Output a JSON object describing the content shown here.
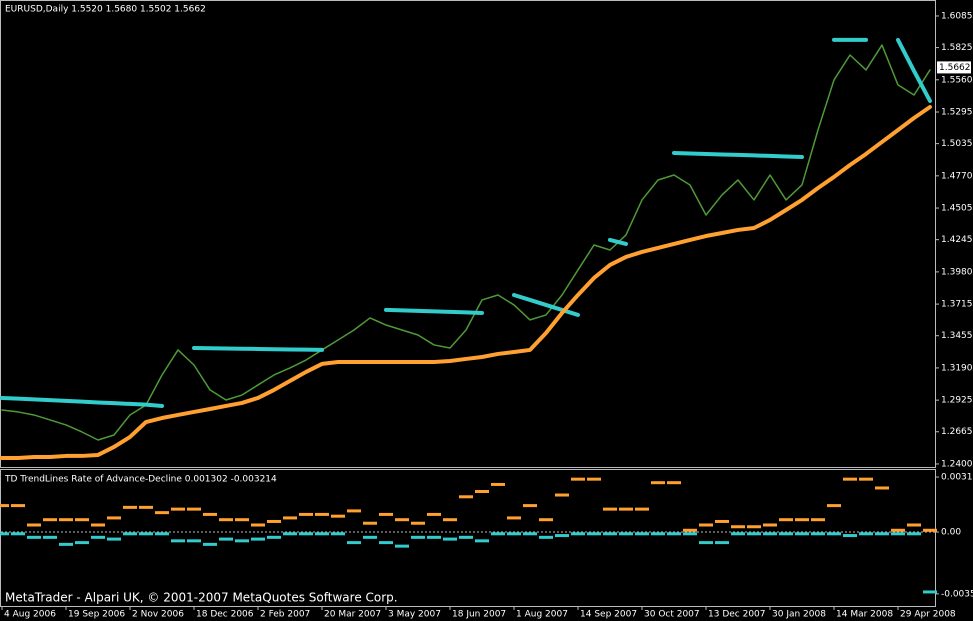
{
  "chart_data": [
    {
      "type": "line",
      "title": "EURUSD,Daily  1.5520 1.5680 1.5502 1.5662",
      "categories": [
        "4 Aug 2006",
        null,
        null,
        null,
        "19 Sep 2006",
        null,
        null,
        null,
        "2 Nov 2006",
        null,
        null,
        null,
        "18 Dec 2006",
        null,
        null,
        null,
        "2 Feb 2007",
        null,
        null,
        null,
        "20 Mar 2007",
        null,
        null,
        null,
        "3 May 2007",
        null,
        null,
        null,
        "18 Jun 2007",
        null,
        null,
        null,
        "1 Aug 2007",
        null,
        null,
        null,
        "14 Sep 2007",
        null,
        null,
        null,
        "30 Oct 2007",
        null,
        null,
        null,
        "13 Dec 2007",
        null,
        null,
        null,
        "30 Jan 2008",
        null,
        null,
        null,
        "14 Mar 2008",
        null,
        null,
        null,
        "29 Apr 2008",
        null,
        null
      ],
      "series": [
        {
          "color": "#4f9a38",
          "values": [
            1.2844,
            1.2828,
            1.2803,
            1.2762,
            1.2721,
            1.2663,
            1.2597,
            1.2638,
            1.2803,
            1.2885,
            1.3132,
            1.3338,
            1.3214,
            1.3009,
            1.2926,
            1.2967,
            1.305,
            1.3132,
            1.319,
            1.3255,
            1.3338,
            1.342,
            1.3502,
            1.3601,
            1.3543,
            1.3502,
            1.3461,
            1.3379,
            1.3354,
            1.3502,
            1.3749,
            1.379,
            1.3708,
            1.3585,
            1.3626,
            1.379,
            1.3996,
            1.4201,
            1.416,
            1.4284,
            1.4572,
            1.4736,
            1.4777,
            1.4695,
            1.4448,
            1.4613,
            1.4736,
            1.4572,
            1.4777,
            1.4572,
            1.4695,
            1.5147,
            1.5559,
            1.5764,
            1.5641,
            1.5846,
            1.5518,
            1.5435,
            1.5641
          ]
        },
        {
          "color": "#33cccc",
          "values": [
            1.2943,
            1.2937,
            1.2931,
            1.2925,
            1.2919,
            1.2913,
            1.2906,
            1.29,
            1.2894,
            1.2888,
            1.2877,
            null,
            1.3354,
            1.3352,
            1.335,
            1.3348,
            1.3346,
            1.3344,
            1.3342,
            1.334,
            1.3338,
            null,
            null,
            null,
            1.3667,
            1.3663,
            1.3659,
            1.3655,
            1.3651,
            1.3647,
            1.3642,
            null,
            1.379,
            1.3749,
            1.3708,
            1.3667,
            1.3626,
            null,
            1.4243,
            1.421,
            null,
            null,
            1.4958,
            1.4954,
            1.495,
            1.4946,
            1.4942,
            1.4938,
            1.4934,
            1.4929,
            1.4925,
            null,
            1.5888,
            1.5888,
            1.5888,
            null,
            1.5888,
            1.5633,
            1.5386
          ]
        },
        {
          "color": "#ffa030",
          "values": [
            1.2449,
            1.2449,
            1.2457,
            1.2457,
            1.2466,
            1.2466,
            1.2474,
            1.254,
            1.2622,
            1.2745,
            1.2778,
            1.2803,
            1.2828,
            1.2852,
            1.2877,
            1.2902,
            1.2943,
            1.3009,
            1.3083,
            1.3157,
            1.3223,
            1.3239,
            1.3239,
            1.3239,
            1.3239,
            1.3239,
            1.3239,
            1.3239,
            1.3247,
            1.3264,
            1.328,
            1.3305,
            1.3321,
            1.3338,
            1.3477,
            1.3642,
            1.379,
            1.393,
            1.4037,
            1.4103,
            1.4144,
            1.4177,
            1.421,
            1.4243,
            1.4275,
            1.43,
            1.4325,
            1.4341,
            1.4407,
            1.4489,
            1.4572,
            1.467,
            1.4761,
            1.4859,
            1.495,
            1.5049,
            1.5147,
            1.5246,
            1.5336
          ]
        }
      ],
      "ylim": [
        1.2375,
        1.62
      ],
      "yticks": [
        1.6085,
        1.5825,
        {
          "value": 1.556,
          "label": "1.5560"
        },
        1.5295,
        1.5035,
        {
          "value": 1.477,
          "label": "1.4770"
        },
        1.4505,
        1.4245,
        {
          "value": 1.398,
          "label": "1.3980"
        },
        1.3715,
        1.3455,
        {
          "value": 1.319,
          "label": "1.3190"
        },
        1.2925,
        1.2665,
        {
          "value": 1.24,
          "label": "1.2400"
        }
      ],
      "last_price": 1.5662
    },
    {
      "type": "dash",
      "title": "TD TrendLines Rate of Advance-Decline 0.001302 -0.003214",
      "series": [
        {
          "color": "#ffa030",
          "values": [
            0.0015,
            0.0015,
            0.0004,
            0.0007,
            0.0007,
            0.0007,
            0.0004,
            0.0008,
            0.0014,
            0.0014,
            0.0011,
            0.0013,
            0.0013,
            0.001,
            0.0007,
            0.0007,
            0.0004,
            0.0006,
            0.0008,
            0.001,
            0.001,
            0.0009,
            0.0012,
            0.0005,
            0.001,
            0.0007,
            0.0005,
            0.001,
            0.0007,
            0.002,
            0.0023,
            0.0027,
            0.0008,
            0.0015,
            0.0007,
            0.0021,
            0.003,
            0.003,
            0.0013,
            0.0013,
            0.0013,
            0.0028,
            0.0028,
            0.0001,
            0.0004,
            0.0006,
            0.0003,
            0.0003,
            0.0004,
            0.0007,
            0.0007,
            0.0007,
            0.0015,
            0.003,
            0.003,
            0.0025,
            0.0001,
            0.0004,
            0.0001
          ]
        },
        {
          "color": "#33cccc",
          "values": [
            -0.0001,
            -0.0001,
            -0.0003,
            -0.0003,
            -0.0007,
            -0.0006,
            -0.0003,
            -0.0004,
            -0.0001,
            -0.0001,
            -0.0001,
            -0.0005,
            -0.0005,
            -0.0007,
            -0.0004,
            -0.0005,
            -0.0004,
            -0.0003,
            -0.0001,
            -0.0001,
            -0.0001,
            -0.0001,
            -0.0006,
            -0.0003,
            -0.0006,
            -0.0008,
            -0.0003,
            -0.0003,
            -0.0004,
            -0.0003,
            -0.0005,
            -0.0001,
            -0.0001,
            -0.0001,
            -0.0003,
            -0.0002,
            -0.0001,
            -0.0001,
            -0.0001,
            -0.0001,
            -0.0001,
            -0.0001,
            -0.0001,
            -0.0001,
            -0.0006,
            -0.0006,
            -0.0001,
            -0.0001,
            -0.0001,
            -0.0001,
            -0.0001,
            -0.0001,
            -0.0001,
            -0.0002,
            -0.0001,
            -0.0001,
            -0.0001,
            -0.0001,
            -0.0034
          ]
        }
      ],
      "ylim": [
        -0.00414,
        0.00352
      ],
      "yticks": [
        0.00312,
        {
          "value": 0,
          "label": "0.00"
        },
        -0.00351
      ]
    }
  ],
  "watermark": "MetaTrader - Alpari UK, © 2001-2007 MetaQuotes Software Corp."
}
